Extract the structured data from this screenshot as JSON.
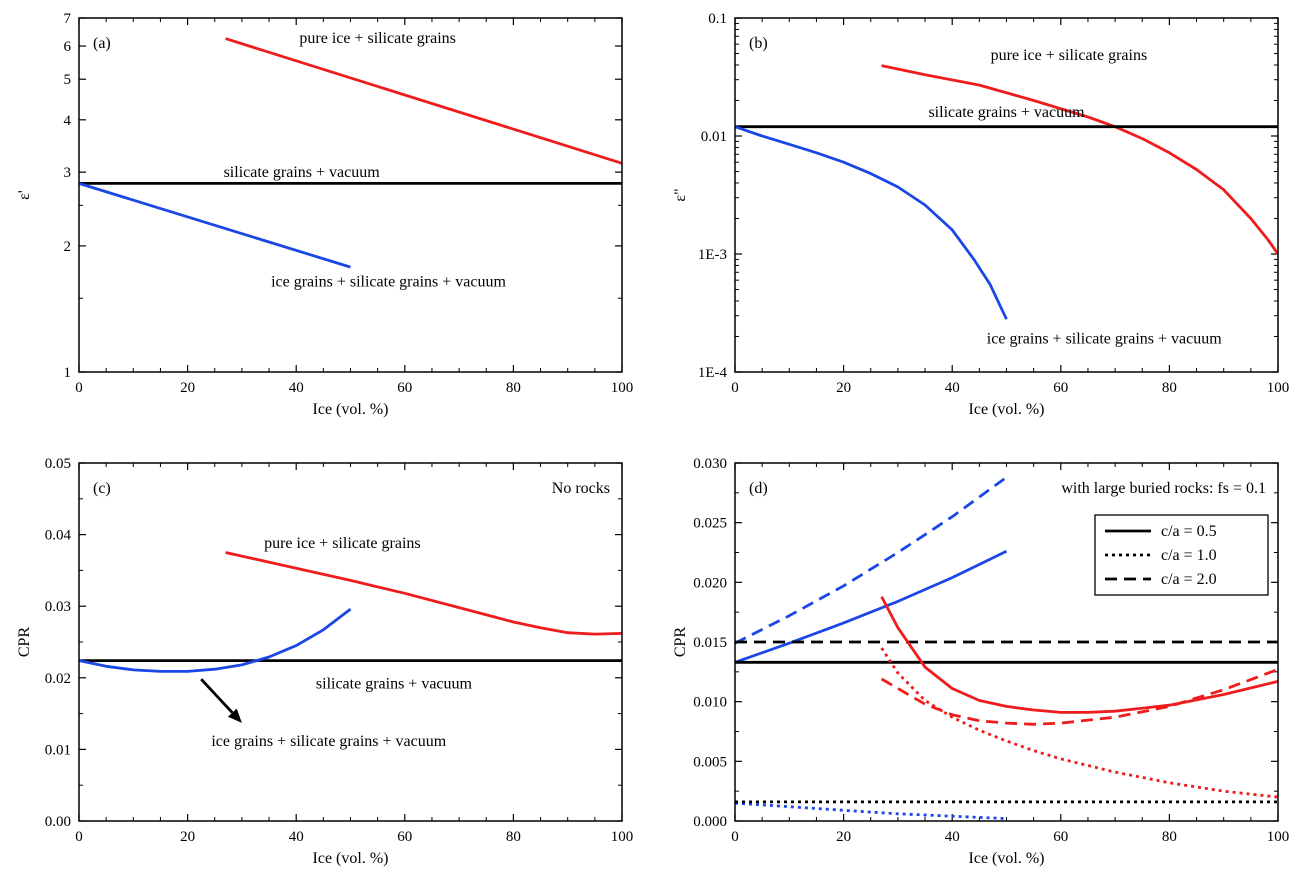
{
  "colors": {
    "red": "#ee1c1c",
    "blue": "#1a47e6",
    "black": "#000000"
  },
  "chart_data": [
    {
      "type": "line",
      "panel_label": "(a)",
      "xlabel": "Ice (vol. %)",
      "ylabel": "ε'",
      "xlim": [
        0,
        100
      ],
      "ylim": [
        1,
        7
      ],
      "yscale": "log",
      "x_ticks": [
        "0",
        "20",
        "40",
        "60",
        "80",
        "100"
      ],
      "y_ticks": [
        "1",
        "2",
        "3",
        "4",
        "5",
        "6",
        "7"
      ],
      "y_tick_values": [
        1,
        2,
        3,
        4,
        5,
        6,
        7
      ],
      "y_minor": [
        1.5,
        2.5
      ],
      "grid": false,
      "series": [
        {
          "color": "#ee1c1c",
          "style": "solid",
          "x": [
            27,
            100
          ],
          "y": [
            6.25,
            3.15
          ]
        },
        {
          "color": "#000000",
          "style": "solid",
          "x": [
            0,
            100
          ],
          "y": [
            2.82,
            2.82
          ]
        },
        {
          "color": "#1a47e6",
          "style": "solid",
          "x": [
            0,
            50
          ],
          "y": [
            2.82,
            1.78
          ]
        }
      ],
      "annotations": [
        {
          "text": "pure ice + silicate grains",
          "x": 55,
          "y": 6.1
        },
        {
          "text": "silicate grains + vacuum",
          "x": 41,
          "y": 2.92
        },
        {
          "text": "ice grains + silicate grains + vacuum",
          "x": 57,
          "y": 1.6
        }
      ]
    },
    {
      "type": "line",
      "panel_label": "(b)",
      "xlabel": "Ice (vol. %)",
      "ylabel": "ε\"",
      "xlim": [
        0,
        100
      ],
      "ylim": [
        0.0001,
        0.1
      ],
      "yscale": "log",
      "x_ticks": [
        "0",
        "20",
        "40",
        "60",
        "80",
        "100"
      ],
      "y_ticks": [
        "1E-4",
        "1E-3",
        "0.01",
        "0.1"
      ],
      "y_tick_values": [
        0.0001,
        0.001,
        0.01,
        0.1
      ],
      "grid": false,
      "series": [
        {
          "color": "#ee1c1c",
          "style": "solid",
          "x": [
            27,
            35,
            45,
            55,
            65,
            70,
            75,
            80,
            85,
            90,
            95,
            98,
            100
          ],
          "y": [
            0.0395,
            0.033,
            0.027,
            0.02,
            0.0145,
            0.012,
            0.0095,
            0.0072,
            0.0052,
            0.0035,
            0.002,
            0.00135,
            0.001
          ]
        },
        {
          "color": "#000000",
          "style": "solid",
          "x": [
            0,
            100
          ],
          "y": [
            0.012,
            0.012
          ]
        },
        {
          "color": "#1a47e6",
          "style": "solid",
          "x": [
            0,
            5,
            10,
            15,
            20,
            25,
            30,
            35,
            40,
            44,
            47,
            49,
            50
          ],
          "y": [
            0.012,
            0.01,
            0.0085,
            0.0072,
            0.006,
            0.0048,
            0.0037,
            0.0026,
            0.0016,
            0.0009,
            0.00055,
            0.00035,
            0.00028
          ]
        }
      ],
      "annotations": [
        {
          "text": "pure ice + silicate grains",
          "x": 61.5,
          "y": 0.044
        },
        {
          "text": "silicate grains + vacuum",
          "x": 50,
          "y": 0.0145
        },
        {
          "text": "ice grains + silicate grains + vacuum",
          "x": 68,
          "y": 0.000175
        }
      ]
    },
    {
      "type": "line",
      "panel_label": "(c)",
      "corner_label": "No rocks",
      "xlabel": "Ice (vol. %)",
      "ylabel": "CPR",
      "xlim": [
        0,
        100
      ],
      "ylim": [
        0,
        0.05
      ],
      "x_ticks": [
        "0",
        "20",
        "40",
        "60",
        "80",
        "100"
      ],
      "y_ticks": [
        "0.00",
        "0.01",
        "0.02",
        "0.03",
        "0.04",
        "0.05"
      ],
      "y_tick_values": [
        0,
        0.01,
        0.02,
        0.03,
        0.04,
        0.05
      ],
      "grid": false,
      "series": [
        {
          "color": "#ee1c1c",
          "style": "solid",
          "x": [
            27,
            40,
            50,
            60,
            70,
            80,
            85,
            90,
            95,
            100
          ],
          "y": [
            0.0375,
            0.0353,
            0.0336,
            0.0318,
            0.0298,
            0.0278,
            0.027,
            0.0263,
            0.0261,
            0.0262
          ]
        },
        {
          "color": "#000000",
          "style": "solid",
          "x": [
            0,
            100
          ],
          "y": [
            0.0224,
            0.0224
          ]
        },
        {
          "color": "#1a47e6",
          "style": "solid",
          "x": [
            0,
            5,
            10,
            15,
            20,
            25,
            30,
            35,
            40,
            45,
            50
          ],
          "y": [
            0.0224,
            0.0216,
            0.0211,
            0.0209,
            0.0209,
            0.0212,
            0.0218,
            0.0229,
            0.0245,
            0.0267,
            0.0296
          ]
        }
      ],
      "arrow": {
        "x1": 22.5,
        "y1": 0.0198,
        "x2": 30,
        "y2": 0.0137,
        "color": "#000000"
      },
      "annotations": [
        {
          "text": "pure ice + silicate grains",
          "x": 48.5,
          "y": 0.0381
        },
        {
          "text": "silicate grains + vacuum",
          "x": 58,
          "y": 0.0185
        },
        {
          "text": "ice grains + silicate grains + vacuum",
          "x": 46,
          "y": 0.0105
        }
      ]
    },
    {
      "type": "line",
      "panel_label": "(d)",
      "corner_label": "with large buried rocks: fs = 0.1",
      "xlabel": "Ice (vol. %)",
      "ylabel": "CPR",
      "xlim": [
        0,
        100
      ],
      "ylim": [
        0,
        0.03
      ],
      "x_ticks": [
        "0",
        "20",
        "40",
        "60",
        "80",
        "100"
      ],
      "y_ticks": [
        "0.000",
        "0.005",
        "0.010",
        "0.015",
        "0.020",
        "0.025",
        "0.030"
      ],
      "y_tick_values": [
        0,
        0.005,
        0.01,
        0.015,
        0.02,
        0.025,
        0.03
      ],
      "grid": false,
      "legend": {
        "position": "top-right",
        "entries": [
          {
            "label": "c/a = 0.5",
            "style": "solid"
          },
          {
            "label": "c/a = 1.0",
            "style": "dotted"
          },
          {
            "label": "c/a = 2.0",
            "style": "dashed"
          }
        ]
      },
      "series": [
        {
          "color": "#1a47e6",
          "style": "dashed",
          "x": [
            0,
            10,
            20,
            30,
            40,
            50
          ],
          "y": [
            0.0149,
            0.0172,
            0.0197,
            0.0225,
            0.0255,
            0.0288
          ]
        },
        {
          "color": "#1a47e6",
          "style": "solid",
          "x": [
            0,
            10,
            20,
            30,
            40,
            50
          ],
          "y": [
            0.0133,
            0.0149,
            0.0166,
            0.0184,
            0.0204,
            0.0226
          ]
        },
        {
          "color": "#1a47e6",
          "style": "dotted",
          "x": [
            0,
            10,
            20,
            30,
            40,
            50
          ],
          "y": [
            0.0015,
            0.0012,
            0.0009,
            0.0006,
            0.0004,
            0.0002
          ]
        },
        {
          "color": "#000000",
          "style": "dashed",
          "x": [
            0,
            100
          ],
          "y": [
            0.015,
            0.015
          ]
        },
        {
          "color": "#000000",
          "style": "solid",
          "x": [
            0,
            100
          ],
          "y": [
            0.0133,
            0.0133
          ]
        },
        {
          "color": "#000000",
          "style": "dotted",
          "x": [
            0,
            100
          ],
          "y": [
            0.0016,
            0.0016
          ]
        },
        {
          "color": "#ee1c1c",
          "style": "solid",
          "x": [
            27,
            30,
            35,
            40,
            45,
            50,
            55,
            60,
            65,
            70,
            80,
            90,
            100
          ],
          "y": [
            0.0188,
            0.0162,
            0.0129,
            0.0111,
            0.0101,
            0.0096,
            0.0093,
            0.0091,
            0.0091,
            0.0092,
            0.0097,
            0.0106,
            0.0117
          ]
        },
        {
          "color": "#ee1c1c",
          "style": "dashed",
          "x": [
            27,
            30,
            35,
            40,
            45,
            50,
            55,
            60,
            70,
            80,
            90,
            100
          ],
          "y": [
            0.0119,
            0.0111,
            0.0098,
            0.0089,
            0.0084,
            0.0082,
            0.0081,
            0.0082,
            0.0087,
            0.0096,
            0.011,
            0.0127
          ]
        },
        {
          "color": "#ee1c1c",
          "style": "dotted",
          "x": [
            27,
            30,
            35,
            40,
            45,
            50,
            55,
            60,
            70,
            80,
            90,
            100
          ],
          "y": [
            0.0145,
            0.0124,
            0.0101,
            0.0087,
            0.0076,
            0.0067,
            0.0059,
            0.0052,
            0.0041,
            0.0032,
            0.0025,
            0.002
          ]
        }
      ]
    }
  ]
}
